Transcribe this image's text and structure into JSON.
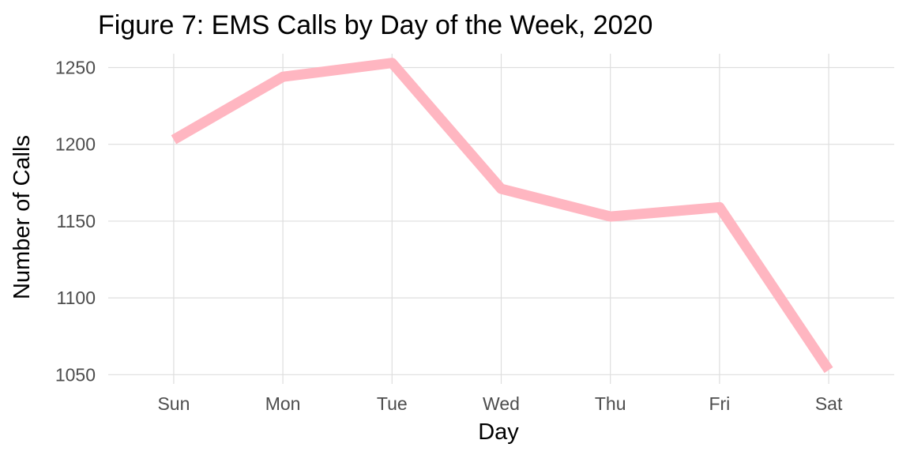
{
  "chart_data": {
    "type": "line",
    "title": "Figure 7: EMS Calls by Day of the Week, 2020",
    "xlabel": "Day",
    "ylabel": "Number of Calls",
    "categories": [
      "Sun",
      "Mon",
      "Tue",
      "Wed",
      "Thu",
      "Fri",
      "Sat"
    ],
    "series": [
      {
        "values": [
          1203,
          1244,
          1253,
          1171,
          1153,
          1159,
          1053
        ]
      }
    ],
    "ylim": [
      1044,
      1259
    ],
    "yticks": [
      1050,
      1100,
      1150,
      1200,
      1250
    ],
    "grid": true,
    "legend": "none",
    "colors": {
      "line": "#ffb6c1",
      "grid": "#dedede",
      "tick_text": "#4d4d4d"
    }
  }
}
